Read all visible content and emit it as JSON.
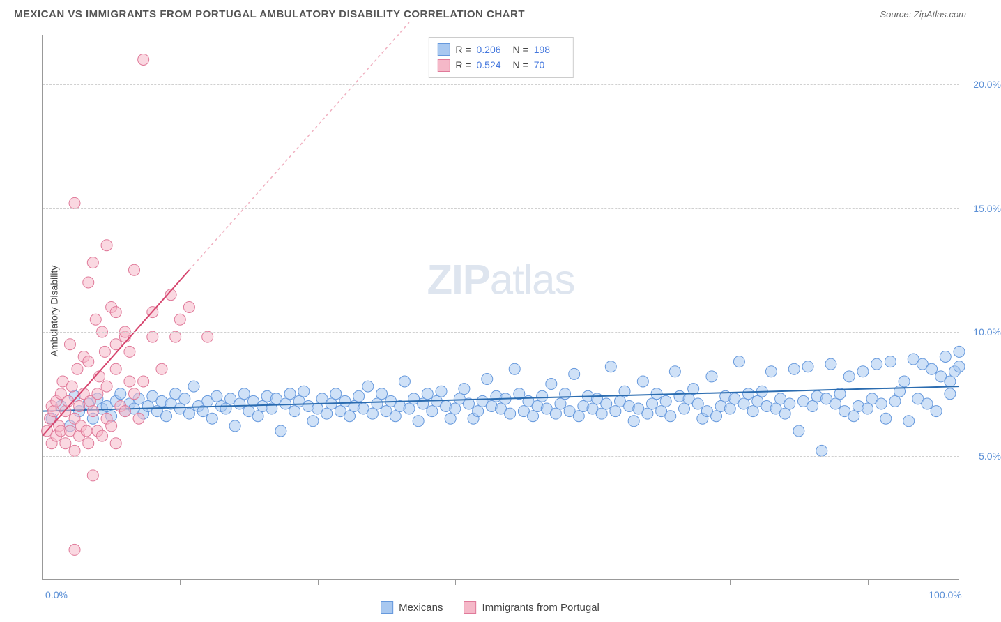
{
  "title": "MEXICAN VS IMMIGRANTS FROM PORTUGAL AMBULATORY DISABILITY CORRELATION CHART",
  "source": "Source: ZipAtlas.com",
  "watermark_bold": "ZIP",
  "watermark_light": "atlas",
  "y_axis_label": "Ambulatory Disability",
  "chart": {
    "type": "scatter",
    "xlim": [
      0,
      100
    ],
    "ylim": [
      0,
      22
    ],
    "x_ticks": [
      0,
      100
    ],
    "x_tick_labels": [
      "0.0%",
      "100.0%"
    ],
    "x_minor_ticks": [
      15,
      30,
      45,
      60,
      75,
      90
    ],
    "y_ticks": [
      5,
      10,
      15,
      20
    ],
    "y_tick_labels": [
      "5.0%",
      "10.0%",
      "15.0%",
      "20.0%"
    ],
    "background_color": "#ffffff",
    "grid_color": "#d0d0d0",
    "point_radius": 8,
    "point_opacity": 0.55,
    "series": [
      {
        "name": "Mexicans",
        "color_fill": "#a8c8f0",
        "color_stroke": "#6699dd",
        "R": "0.206",
        "N": "198",
        "trend": {
          "x1": 0,
          "y1": 6.8,
          "x2": 100,
          "y2": 7.8,
          "color": "#2b6cb0",
          "width": 2
        },
        "points": [
          [
            1,
            6.5
          ],
          [
            2,
            7.0
          ],
          [
            3,
            6.2
          ],
          [
            3.5,
            7.4
          ],
          [
            4,
            6.8
          ],
          [
            5,
            7.1
          ],
          [
            5.5,
            6.5
          ],
          [
            6,
            7.3
          ],
          [
            6.5,
            6.9
          ],
          [
            7,
            7.0
          ],
          [
            7.5,
            6.6
          ],
          [
            8,
            7.2
          ],
          [
            8.5,
            7.5
          ],
          [
            9,
            6.8
          ],
          [
            9.5,
            7.1
          ],
          [
            10,
            6.9
          ],
          [
            10.5,
            7.3
          ],
          [
            11,
            6.7
          ],
          [
            11.5,
            7.0
          ],
          [
            12,
            7.4
          ],
          [
            12.5,
            6.8
          ],
          [
            13,
            7.2
          ],
          [
            13.5,
            6.6
          ],
          [
            14,
            7.1
          ],
          [
            14.5,
            7.5
          ],
          [
            15,
            6.9
          ],
          [
            15.5,
            7.3
          ],
          [
            16,
            6.7
          ],
          [
            16.5,
            7.8
          ],
          [
            17,
            7.0
          ],
          [
            17.5,
            6.8
          ],
          [
            18,
            7.2
          ],
          [
            18.5,
            6.5
          ],
          [
            19,
            7.4
          ],
          [
            19.5,
            7.0
          ],
          [
            20,
            6.9
          ],
          [
            20.5,
            7.3
          ],
          [
            21,
            6.2
          ],
          [
            21.5,
            7.1
          ],
          [
            22,
            7.5
          ],
          [
            22.5,
            6.8
          ],
          [
            23,
            7.2
          ],
          [
            23.5,
            6.6
          ],
          [
            24,
            7.0
          ],
          [
            24.5,
            7.4
          ],
          [
            25,
            6.9
          ],
          [
            25.5,
            7.3
          ],
          [
            26,
            6.0
          ],
          [
            26.5,
            7.1
          ],
          [
            27,
            7.5
          ],
          [
            27.5,
            6.8
          ],
          [
            28,
            7.2
          ],
          [
            28.5,
            7.6
          ],
          [
            29,
            7.0
          ],
          [
            29.5,
            6.4
          ],
          [
            30,
            6.9
          ],
          [
            30.5,
            7.3
          ],
          [
            31,
            6.7
          ],
          [
            31.5,
            7.1
          ],
          [
            32,
            7.5
          ],
          [
            32.5,
            6.8
          ],
          [
            33,
            7.2
          ],
          [
            33.5,
            6.6
          ],
          [
            34,
            7.0
          ],
          [
            34.5,
            7.4
          ],
          [
            35,
            6.9
          ],
          [
            35.5,
            7.8
          ],
          [
            36,
            6.7
          ],
          [
            36.5,
            7.1
          ],
          [
            37,
            7.5
          ],
          [
            37.5,
            6.8
          ],
          [
            38,
            7.2
          ],
          [
            38.5,
            6.6
          ],
          [
            39,
            7.0
          ],
          [
            39.5,
            8.0
          ],
          [
            40,
            6.9
          ],
          [
            40.5,
            7.3
          ],
          [
            41,
            6.4
          ],
          [
            41.5,
            7.1
          ],
          [
            42,
            7.5
          ],
          [
            42.5,
            6.8
          ],
          [
            43,
            7.2
          ],
          [
            43.5,
            7.6
          ],
          [
            44,
            7.0
          ],
          [
            44.5,
            6.5
          ],
          [
            45,
            6.9
          ],
          [
            45.5,
            7.3
          ],
          [
            46,
            7.7
          ],
          [
            46.5,
            7.1
          ],
          [
            47,
            6.5
          ],
          [
            47.5,
            6.8
          ],
          [
            48,
            7.2
          ],
          [
            48.5,
            8.1
          ],
          [
            49,
            7.0
          ],
          [
            49.5,
            7.4
          ],
          [
            50,
            6.9
          ],
          [
            50.5,
            7.3
          ],
          [
            51,
            6.7
          ],
          [
            51.5,
            8.5
          ],
          [
            52,
            7.5
          ],
          [
            52.5,
            6.8
          ],
          [
            53,
            7.2
          ],
          [
            53.5,
            6.6
          ],
          [
            54,
            7.0
          ],
          [
            54.5,
            7.4
          ],
          [
            55,
            6.9
          ],
          [
            55.5,
            7.9
          ],
          [
            56,
            6.7
          ],
          [
            56.5,
            7.1
          ],
          [
            57,
            7.5
          ],
          [
            57.5,
            6.8
          ],
          [
            58,
            8.3
          ],
          [
            58.5,
            6.6
          ],
          [
            59,
            7.0
          ],
          [
            59.5,
            7.4
          ],
          [
            60,
            6.9
          ],
          [
            60.5,
            7.3
          ],
          [
            61,
            6.7
          ],
          [
            61.5,
            7.1
          ],
          [
            62,
            8.6
          ],
          [
            62.5,
            6.8
          ],
          [
            63,
            7.2
          ],
          [
            63.5,
            7.6
          ],
          [
            64,
            7.0
          ],
          [
            64.5,
            6.4
          ],
          [
            65,
            6.9
          ],
          [
            65.5,
            8.0
          ],
          [
            66,
            6.7
          ],
          [
            66.5,
            7.1
          ],
          [
            67,
            7.5
          ],
          [
            67.5,
            6.8
          ],
          [
            68,
            7.2
          ],
          [
            68.5,
            6.6
          ],
          [
            69,
            8.4
          ],
          [
            69.5,
            7.4
          ],
          [
            70,
            6.9
          ],
          [
            70.5,
            7.3
          ],
          [
            71,
            7.7
          ],
          [
            71.5,
            7.1
          ],
          [
            72,
            6.5
          ],
          [
            72.5,
            6.8
          ],
          [
            73,
            8.2
          ],
          [
            73.5,
            6.6
          ],
          [
            74,
            7.0
          ],
          [
            74.5,
            7.4
          ],
          [
            75,
            6.9
          ],
          [
            75.5,
            7.3
          ],
          [
            76,
            8.8
          ],
          [
            76.5,
            7.1
          ],
          [
            77,
            7.5
          ],
          [
            77.5,
            6.8
          ],
          [
            78,
            7.2
          ],
          [
            78.5,
            7.6
          ],
          [
            79,
            7.0
          ],
          [
            79.5,
            8.4
          ],
          [
            80,
            6.9
          ],
          [
            80.5,
            7.3
          ],
          [
            81,
            6.7
          ],
          [
            81.5,
            7.1
          ],
          [
            82,
            8.5
          ],
          [
            82.5,
            6.0
          ],
          [
            83,
            7.2
          ],
          [
            83.5,
            8.6
          ],
          [
            84,
            7.0
          ],
          [
            84.5,
            7.4
          ],
          [
            85,
            5.2
          ],
          [
            85.5,
            7.3
          ],
          [
            86,
            8.7
          ],
          [
            86.5,
            7.1
          ],
          [
            87,
            7.5
          ],
          [
            87.5,
            6.8
          ],
          [
            88,
            8.2
          ],
          [
            88.5,
            6.6
          ],
          [
            89,
            7.0
          ],
          [
            89.5,
            8.4
          ],
          [
            90,
            6.9
          ],
          [
            90.5,
            7.3
          ],
          [
            91,
            8.7
          ],
          [
            91.5,
            7.1
          ],
          [
            92,
            6.5
          ],
          [
            92.5,
            8.8
          ],
          [
            93,
            7.2
          ],
          [
            93.5,
            7.6
          ],
          [
            94,
            8.0
          ],
          [
            94.5,
            6.4
          ],
          [
            95,
            8.9
          ],
          [
            95.5,
            7.3
          ],
          [
            96,
            8.7
          ],
          [
            96.5,
            7.1
          ],
          [
            97,
            8.5
          ],
          [
            97.5,
            6.8
          ],
          [
            98,
            8.2
          ],
          [
            98.5,
            9.0
          ],
          [
            99,
            8.0
          ],
          [
            99.5,
            8.4
          ],
          [
            100,
            9.2
          ],
          [
            100,
            8.6
          ],
          [
            99,
            7.5
          ]
        ]
      },
      {
        "name": "Immigrants from Portugal",
        "color_fill": "#f5b8c8",
        "color_stroke": "#e07a9a",
        "R": "0.524",
        "N": "70",
        "trend": {
          "x1": 0,
          "y1": 5.8,
          "x2": 16,
          "y2": 12.5,
          "color": "#d6456e",
          "width": 2
        },
        "trend_dash": {
          "x1": 16,
          "y1": 12.5,
          "x2": 40,
          "y2": 22.5,
          "color": "#f0b0c0",
          "width": 1.5
        },
        "points": [
          [
            0.5,
            6.0
          ],
          [
            0.8,
            6.5
          ],
          [
            1,
            7.0
          ],
          [
            1,
            5.5
          ],
          [
            1.2,
            6.8
          ],
          [
            1.5,
            7.2
          ],
          [
            1.5,
            5.8
          ],
          [
            1.8,
            6.2
          ],
          [
            2,
            7.5
          ],
          [
            2,
            6.0
          ],
          [
            2.2,
            8.0
          ],
          [
            2.5,
            5.5
          ],
          [
            2.5,
            6.8
          ],
          [
            2.8,
            7.2
          ],
          [
            3,
            6.0
          ],
          [
            3,
            9.5
          ],
          [
            3.2,
            7.8
          ],
          [
            3.5,
            6.5
          ],
          [
            3.5,
            5.2
          ],
          [
            3.8,
            8.5
          ],
          [
            4,
            7.0
          ],
          [
            4,
            5.8
          ],
          [
            4.2,
            6.2
          ],
          [
            4.5,
            9.0
          ],
          [
            4.5,
            7.5
          ],
          [
            4.8,
            6.0
          ],
          [
            5,
            8.8
          ],
          [
            5,
            5.5
          ],
          [
            5.2,
            7.2
          ],
          [
            5.5,
            6.8
          ],
          [
            5.5,
            4.2
          ],
          [
            5.8,
            10.5
          ],
          [
            6,
            7.5
          ],
          [
            6,
            6.0
          ],
          [
            6.2,
            8.2
          ],
          [
            6.5,
            5.8
          ],
          [
            6.8,
            9.2
          ],
          [
            7,
            6.5
          ],
          [
            7,
            7.8
          ],
          [
            7.5,
            11.0
          ],
          [
            7.5,
            6.2
          ],
          [
            8,
            8.5
          ],
          [
            8,
            5.5
          ],
          [
            8.5,
            7.0
          ],
          [
            9,
            9.8
          ],
          [
            9,
            6.8
          ],
          [
            9.5,
            8.0
          ],
          [
            10,
            7.5
          ],
          [
            10,
            12.5
          ],
          [
            10.5,
            6.5
          ],
          [
            3.5,
            15.2
          ],
          [
            5,
            12.0
          ],
          [
            5.5,
            12.8
          ],
          [
            6.5,
            10.0
          ],
          [
            7,
            13.5
          ],
          [
            8,
            10.8
          ],
          [
            8,
            9.5
          ],
          [
            9,
            10.0
          ],
          [
            9.5,
            9.2
          ],
          [
            11,
            21.0
          ],
          [
            3.5,
            1.2
          ],
          [
            11,
            8.0
          ],
          [
            12,
            9.8
          ],
          [
            12,
            10.8
          ],
          [
            13,
            8.5
          ],
          [
            14,
            11.5
          ],
          [
            14.5,
            9.8
          ],
          [
            15,
            10.5
          ],
          [
            16,
            11.0
          ],
          [
            18,
            9.8
          ]
        ]
      }
    ]
  },
  "legend_bottom": [
    {
      "label": "Mexicans",
      "fill": "#a8c8f0",
      "stroke": "#6699dd"
    },
    {
      "label": "Immigrants from Portugal",
      "fill": "#f5b8c8",
      "stroke": "#e07a9a"
    }
  ]
}
